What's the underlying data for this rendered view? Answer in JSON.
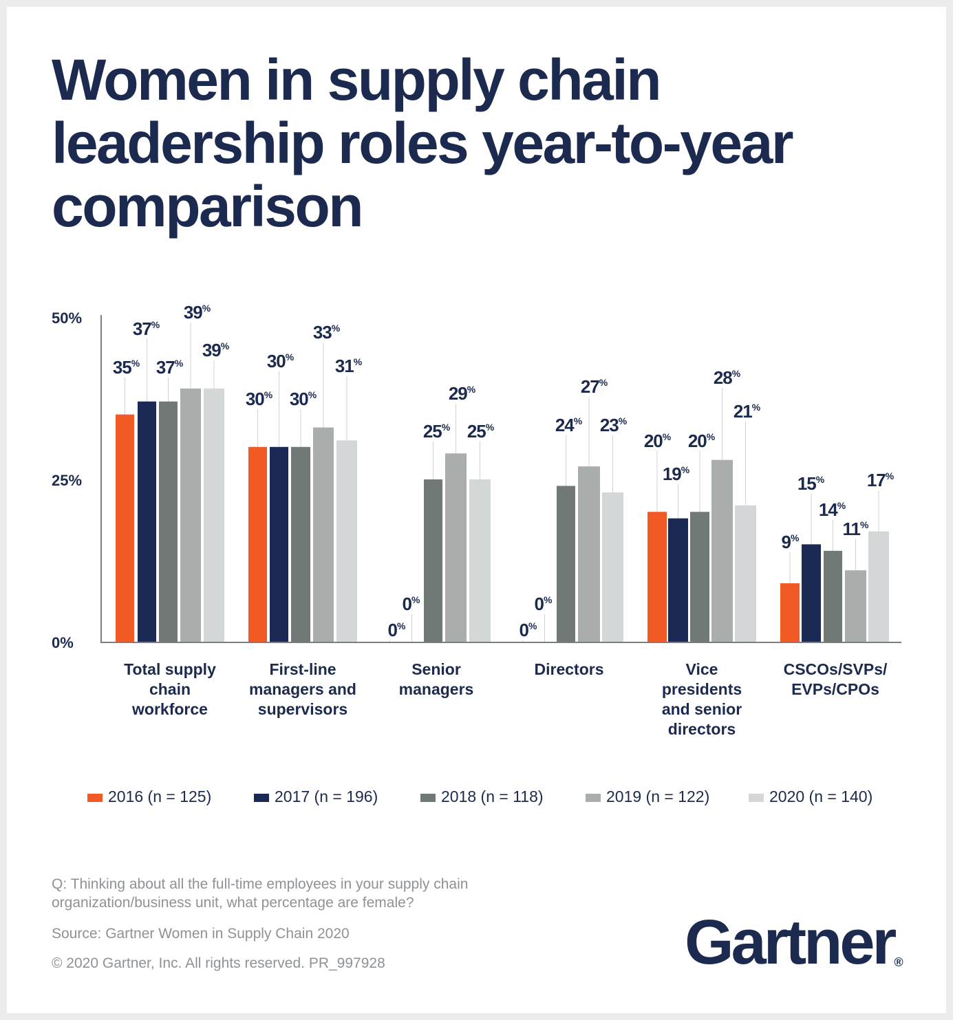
{
  "title": "Women in supply chain leadership roles year-to-year comparison",
  "chart_data": {
    "type": "bar",
    "title": "Women in supply chain leadership roles year-to-year comparison",
    "categories": [
      "Total supply chain workforce",
      "First-line managers and supervisors",
      "Senior managers",
      "Directors",
      "Vice presidents and senior directors",
      "CSCOs/SVPs/ EVPs/CPOs"
    ],
    "series": [
      {
        "name": "2016 (n = 125)",
        "color": "#f15a24",
        "values": [
          35,
          30,
          0,
          0,
          20,
          9
        ]
      },
      {
        "name": "2017 (n = 196)",
        "color": "#1b2a55",
        "values": [
          37,
          30,
          0,
          0,
          19,
          15
        ]
      },
      {
        "name": "2018 (n = 118)",
        "color": "#717976",
        "values": [
          37,
          30,
          25,
          24,
          20,
          14
        ]
      },
      {
        "name": "2019 (n = 122)",
        "color": "#a9aeac",
        "values": [
          39,
          33,
          29,
          27,
          28,
          11
        ]
      },
      {
        "name": "2020 (n = 140)",
        "color": "#d4d7d8",
        "values": [
          39,
          31,
          25,
          23,
          21,
          17
        ]
      }
    ],
    "yticks": [
      "0%",
      "25%",
      "50%"
    ],
    "ylim": [
      0,
      50
    ],
    "grid": false,
    "legend": "bottom",
    "data_label_suffix": "%"
  },
  "footer": {
    "question": "Q: Thinking about all the full-time employees in your supply chain organization/business unit, what percentage are female?",
    "source": "Source: Gartner Women in Supply Chain 2020",
    "copyright": "© 2020 Gartner, Inc. All rights reserved. PR_997928"
  },
  "logo": "Gartner"
}
